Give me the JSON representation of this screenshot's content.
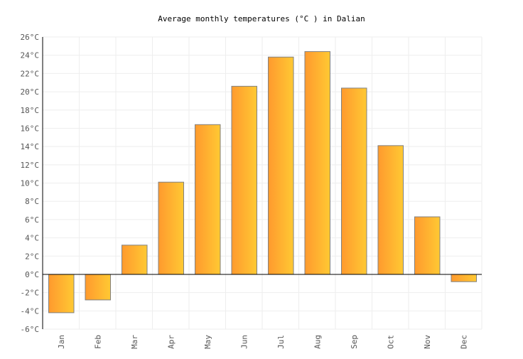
{
  "chart_data": {
    "type": "bar",
    "title": "Average monthly temperatures (°C ) in Dalian",
    "categories": [
      "Jan",
      "Feb",
      "Mar",
      "Apr",
      "May",
      "Jun",
      "Jul",
      "Aug",
      "Sep",
      "Oct",
      "Nov",
      "Dec"
    ],
    "values": [
      -4.2,
      -2.8,
      3.2,
      10.1,
      16.4,
      20.6,
      23.8,
      24.4,
      20.4,
      14.1,
      6.3,
      -0.8
    ],
    "unit": "°C",
    "ylim": [
      -6,
      26
    ],
    "ytick_step": 2,
    "grid": true,
    "colors": {
      "bar_start": "#ff9a2e",
      "bar_end": "#ffc933",
      "bar_stroke": "#808080",
      "grid": "#eeeeee"
    }
  }
}
